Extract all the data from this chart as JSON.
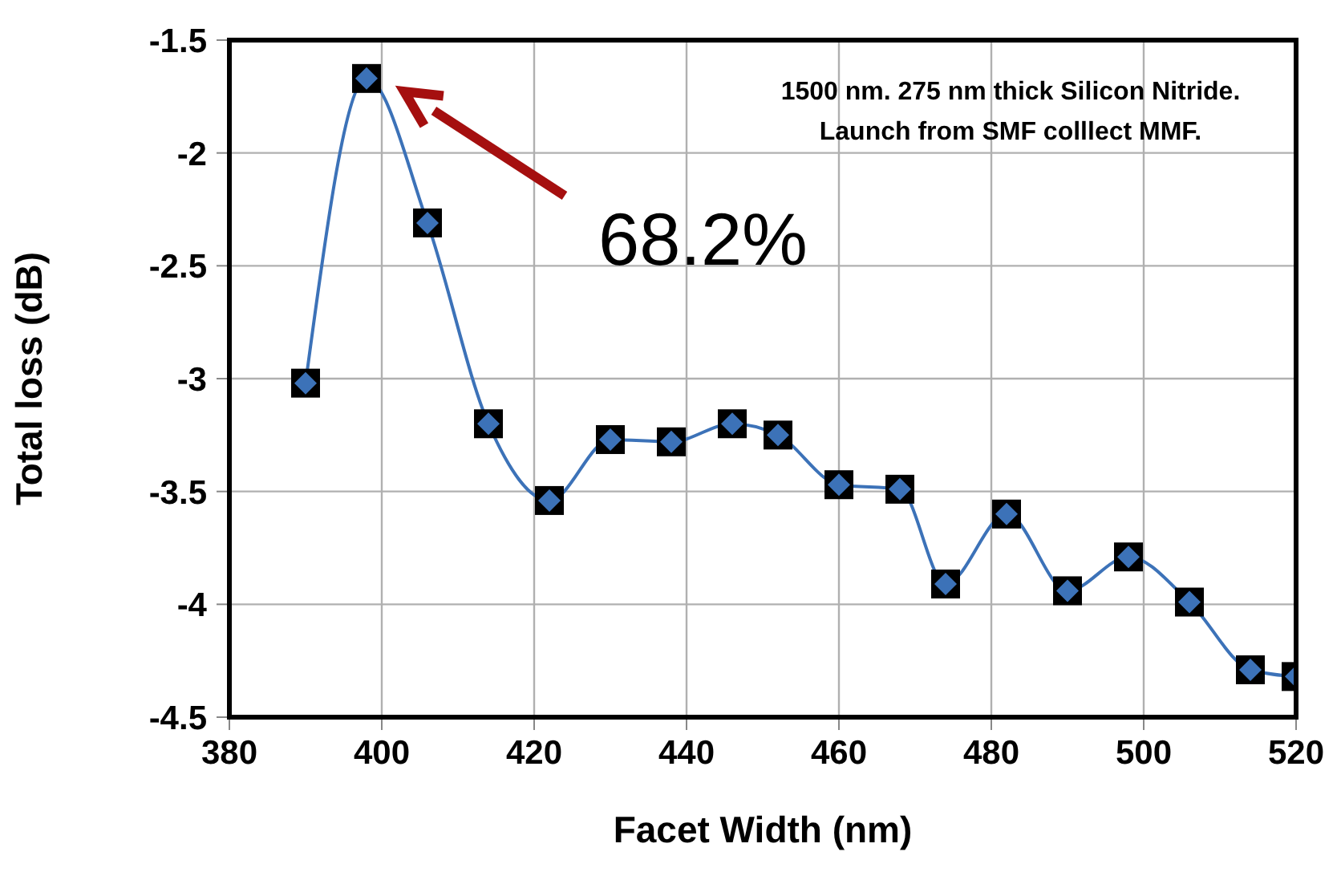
{
  "chart_data": {
    "type": "line",
    "xlabel": "Facet Width (nm)",
    "ylabel": "Total loss (dB)",
    "x": [
      390,
      398,
      406,
      414,
      422,
      430,
      438,
      446,
      452,
      460,
      468,
      474,
      482,
      490,
      498,
      506,
      514,
      520
    ],
    "series": [
      {
        "color": "#3c72b8",
        "values": [
          -3.02,
          -1.67,
          -2.31,
          -3.2,
          -3.54,
          -3.27,
          -3.28,
          -3.2,
          -3.25,
          -3.47,
          -3.49,
          -3.91,
          -3.6,
          -3.94,
          -3.79,
          -3.99,
          -4.29,
          -4.32
        ]
      }
    ],
    "xlim": [
      380,
      520
    ],
    "xticks": [
      380,
      400,
      420,
      440,
      460,
      480,
      500,
      520
    ],
    "ylim": [
      -4.5,
      -1.5
    ],
    "yticks": [
      -4.5,
      -4,
      -3.5,
      -3,
      -2.5,
      -2,
      -1.5
    ],
    "grid": true,
    "marker": "diamond",
    "line_style": "solid",
    "annotations": [
      "1500 nm. 275 nm thick Silicon Nitride.",
      "Launch from SMF colllect MMF.",
      "68.2%"
    ]
  }
}
